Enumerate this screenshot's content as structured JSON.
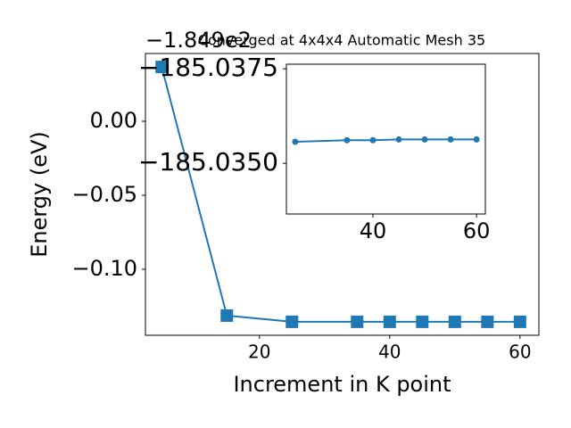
{
  "chart_data": [
    {
      "type": "line",
      "title": "Converged at 4x4x4 Automatic Mesh 35",
      "xlabel": "Increment in K point",
      "ylabel": "Energy (eV)",
      "y_offset_label": "−1.849e2",
      "x": [
        5,
        15,
        25,
        35,
        40,
        45,
        50,
        55,
        60
      ],
      "series": [
        {
          "color": "#1f77b4",
          "marker": "square",
          "values": [
            0.0367,
            -0.1313,
            -0.1355,
            -0.1355,
            -0.1355,
            -0.1355,
            -0.1355,
            -0.1355,
            -0.1355
          ]
        }
      ],
      "xlim": [
        2.5,
        62.9
      ],
      "ylim": [
        -0.1446,
        0.0458
      ],
      "xticks": [
        20,
        40,
        60
      ],
      "yticks": [
        {
          "value": 0,
          "label": "0.00"
        },
        {
          "value": -0.05,
          "label": "−0.05"
        },
        {
          "value": -0.1,
          "label": "−0.10"
        }
      ]
    },
    {
      "type": "line",
      "x": [
        25,
        35,
        40,
        45,
        50,
        55,
        60
      ],
      "series": [
        {
          "color": "#1f77b4",
          "marker": "circle",
          "values": [
            -185.03557,
            -185.03561,
            -185.03561,
            -185.03563,
            -185.03563,
            -185.03563,
            -185.03563
          ]
        }
      ],
      "xlim": [
        23.3,
        61.7
      ],
      "ylim": [
        -185.03366,
        -185.03762
      ],
      "xticks": [
        40,
        60
      ],
      "yticks": [
        {
          "value": -185.0375,
          "label": "−185.0375"
        },
        {
          "value": -185.035,
          "label": "−185.0350"
        }
      ]
    }
  ]
}
